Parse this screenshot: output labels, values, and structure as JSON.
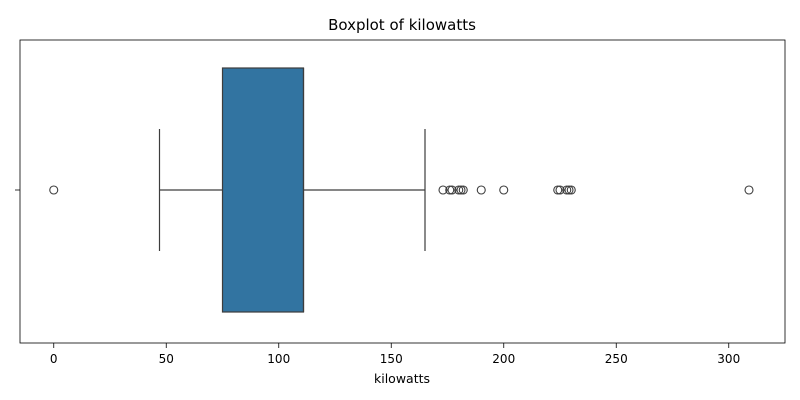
{
  "chart_data": {
    "type": "boxplot",
    "title": "Boxplot of kilowatts",
    "xlabel": "kilowatts",
    "ylabel": "",
    "xlim": [
      -15,
      325
    ],
    "xticks": [
      0,
      50,
      100,
      150,
      200,
      250,
      300
    ],
    "xtick_labels": [
      "0",
      "50",
      "100",
      "150",
      "200",
      "250",
      "300"
    ],
    "grid": false,
    "box_color": "#3274a1",
    "line_color": "#3d3d3d",
    "box": {
      "whisker_low": 47,
      "q1": 75,
      "median": 111,
      "q3": 111,
      "whisker_high": 165
    },
    "outliers": [
      0,
      173,
      176,
      177,
      180,
      181,
      182,
      190,
      200,
      224,
      225,
      228,
      229,
      230,
      309
    ]
  }
}
